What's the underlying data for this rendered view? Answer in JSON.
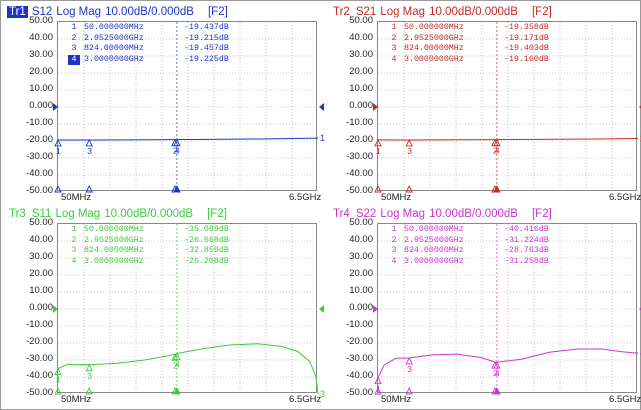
{
  "xaxis": {
    "start": "50MHz",
    "stop": "6.5GHz"
  },
  "yaxis": {
    "ticks": [
      "50.00",
      "40.00",
      "30.00",
      "20.00",
      "10.00",
      "0.000",
      "-10.00",
      "-20.00",
      "-30.00",
      "-40.00",
      "-50.00"
    ],
    "max": 50,
    "min": -50
  },
  "traces": [
    {
      "id": "Tr1",
      "param": "S12",
      "format": "Log Mag",
      "scale": "10.00dB/",
      "ref": "0.000dB",
      "function": "[F2]",
      "color": "#1f35c8",
      "active": true,
      "markers": [
        {
          "num": "1",
          "freq": "50.000000MHz",
          "value": "-19.437dB"
        },
        {
          "num": "2",
          "freq": "2.9525000GHz",
          "value": "-19.215dB"
        },
        {
          "num": "3",
          "freq": "824.00000MHz",
          "value": "-19.457dB"
        },
        {
          "num": "4",
          "freq": "3.0000000GHz",
          "value": "-19.225dB"
        }
      ],
      "end_label": "1",
      "curve": [
        [
          50,
          -19.4
        ],
        [
          824,
          -19.4
        ],
        [
          2950,
          -19.2
        ],
        [
          3000,
          -19.2
        ],
        [
          4500,
          -18.9
        ],
        [
          5500,
          -18.7
        ],
        [
          6500,
          -18.3
        ]
      ]
    },
    {
      "id": "Tr2",
      "param": "S21",
      "format": "Log Mag",
      "scale": "10.00dB/",
      "ref": "0.000dB",
      "function": "[F2]",
      "color": "#c82a28",
      "active": false,
      "markers": [
        {
          "num": "1",
          "freq": "50.000000MHz",
          "value": "-19.358dB"
        },
        {
          "num": "2",
          "freq": "2.9525000GHz",
          "value": "-19.171dB"
        },
        {
          "num": "3",
          "freq": "824.00000MHz",
          "value": "-19.403dB"
        },
        {
          "num": "4",
          "freq": "3.0000000GHz",
          "value": "-19.160dB"
        }
      ],
      "end_label": "2",
      "curve": [
        [
          50,
          -19.3
        ],
        [
          824,
          -19.4
        ],
        [
          2950,
          -19.2
        ],
        [
          3000,
          -19.2
        ],
        [
          4500,
          -19.0
        ],
        [
          5500,
          -18.8
        ],
        [
          6500,
          -18.5
        ]
      ]
    },
    {
      "id": "Tr3",
      "param": "S11",
      "format": "Log Mag",
      "scale": "10.00dB/",
      "ref": "0.000dB",
      "function": "[F2]",
      "color": "#3ecb3e",
      "active": false,
      "markers": [
        {
          "num": "1",
          "freq": "50.000000MHz",
          "value": "-35.089dB"
        },
        {
          "num": "2",
          "freq": "2.9525000GHz",
          "value": "-26.668dB"
        },
        {
          "num": "3",
          "freq": "824.00000MHz",
          "value": "-32.859dB"
        },
        {
          "num": "4",
          "freq": "3.0000000GHz",
          "value": "-26.208dB"
        }
      ],
      "end_label": "3",
      "curve": [
        [
          50,
          -35
        ],
        [
          300,
          -32.5
        ],
        [
          824,
          -32.8
        ],
        [
          1500,
          -32
        ],
        [
          2200,
          -30
        ],
        [
          2950,
          -26.7
        ],
        [
          3000,
          -26.2
        ],
        [
          3600,
          -23.5
        ],
        [
          4300,
          -21.2
        ],
        [
          5000,
          -20.5
        ],
        [
          5600,
          -22
        ],
        [
          6000,
          -25
        ],
        [
          6300,
          -31
        ],
        [
          6450,
          -40
        ],
        [
          6500,
          -50
        ]
      ]
    },
    {
      "id": "Tr4",
      "param": "S22",
      "format": "Log Mag",
      "scale": "10.00dB/",
      "ref": "0.000dB",
      "function": "[F2]",
      "color": "#cc35cc",
      "active": false,
      "markers": [
        {
          "num": "1",
          "freq": "50.000000MHz",
          "value": "-40.416dB"
        },
        {
          "num": "2",
          "freq": "2.9525000GHz",
          "value": "-31.224dB"
        },
        {
          "num": "3",
          "freq": "824.00000MHz",
          "value": "-28.763dB"
        },
        {
          "num": "4",
          "freq": "3.0000000GHz",
          "value": "-31.258dB"
        }
      ],
      "end_label": "4",
      "curve": [
        [
          50,
          -40.4
        ],
        [
          200,
          -33
        ],
        [
          500,
          -29
        ],
        [
          824,
          -28.8
        ],
        [
          1400,
          -27
        ],
        [
          2000,
          -26.5
        ],
        [
          2600,
          -28.5
        ],
        [
          2950,
          -31.2
        ],
        [
          3000,
          -31.3
        ],
        [
          3600,
          -29.5
        ],
        [
          4300,
          -25.5
        ],
        [
          5000,
          -23.5
        ],
        [
          5600,
          -23.5
        ],
        [
          6100,
          -25.2
        ],
        [
          6500,
          -26
        ]
      ]
    }
  ]
}
